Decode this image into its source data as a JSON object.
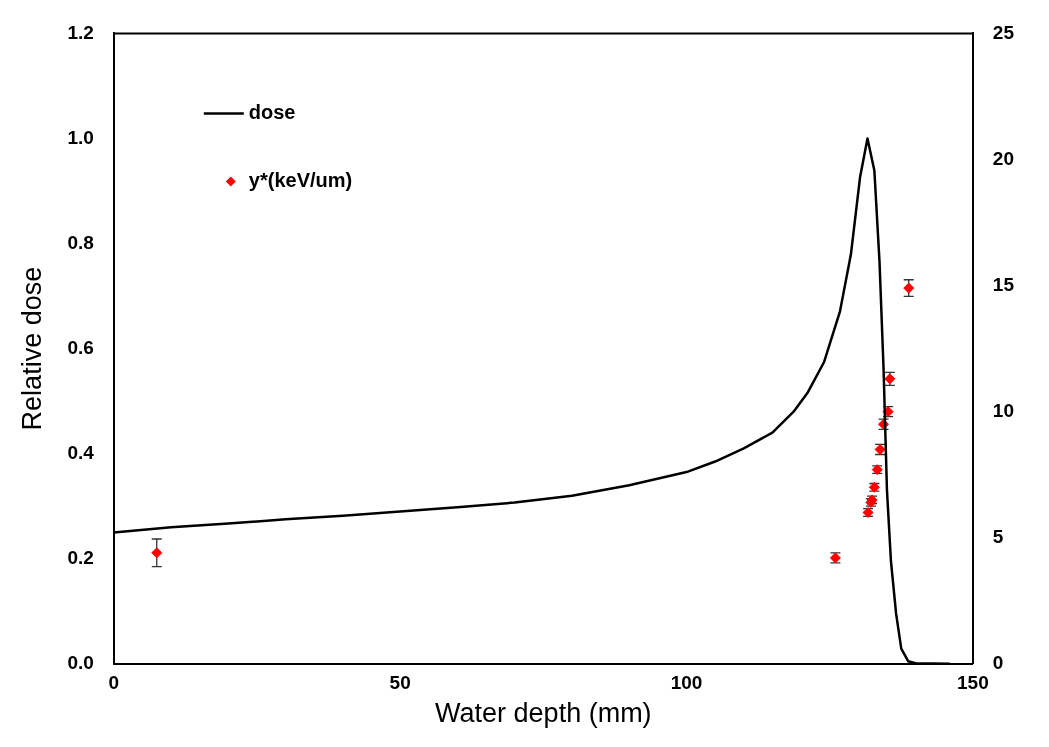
{
  "chart_data": {
    "type": "line",
    "xlabel": "Water depth (mm)",
    "ylabel": "Relative dose",
    "xlim": [
      0,
      150
    ],
    "xticks": [
      0,
      50,
      100,
      150
    ],
    "ylim": [
      0,
      1.2
    ],
    "yticks": [
      {
        "value": 0,
        "label": "0.0"
      },
      {
        "value": 0.2,
        "label": "0.2"
      },
      {
        "value": 0.4,
        "label": "0.4"
      },
      {
        "value": 0.6,
        "label": "0.6"
      },
      {
        "value": 0.8,
        "label": "0.8"
      },
      {
        "value": 1,
        "label": "1.0"
      },
      {
        "value": 1.2,
        "label": "1.2"
      }
    ],
    "y2lim": [
      0,
      25
    ],
    "y2ticks": [
      0,
      5,
      10,
      15,
      20,
      25
    ],
    "grid": false,
    "legend": "top left",
    "series": [
      {
        "name": "dose",
        "color": "#000000",
        "marker": "none",
        "line_style": "solid",
        "x": [
          0,
          10,
          20,
          30,
          40,
          50,
          60,
          70,
          80,
          90,
          100,
          105,
          110,
          115,
          118.7,
          121.2,
          124,
          126.8,
          128.7,
          130.3,
          131.6,
          132.8,
          133.7,
          134.4,
          135,
          135.7,
          136.6,
          137.5,
          138.7,
          140,
          146
        ],
        "values": [
          0.25,
          0.26,
          0.267,
          0.275,
          0.282,
          0.29,
          0.298,
          0.307,
          0.32,
          0.34,
          0.365,
          0.385,
          0.41,
          0.44,
          0.48,
          0.517,
          0.574,
          0.671,
          0.779,
          0.926,
          1.0,
          0.939,
          0.765,
          0.564,
          0.33,
          0.195,
          0.095,
          0.029,
          0.005,
          0.001,
          0
        ]
      },
      {
        "name": "y*(keV/um)",
        "type": "scatter",
        "axis": "y2",
        "color": "#ff0000",
        "marker": "diamond",
        "x": [
          7.5,
          126,
          131.7,
          132.2,
          132.4,
          132.8,
          133.3,
          133.8,
          134.4,
          135.2,
          135.5,
          138.8
        ],
        "values": [
          4.4,
          4.2,
          6.0,
          6.4,
          6.5,
          7.0,
          7.7,
          8.5,
          9.5,
          10.0,
          11.3,
          14.9
        ],
        "errors": [
          0.55,
          0.2,
          0.15,
          0.15,
          0.15,
          0.15,
          0.15,
          0.2,
          0.2,
          0.2,
          0.26,
          0.33
        ]
      }
    ]
  }
}
